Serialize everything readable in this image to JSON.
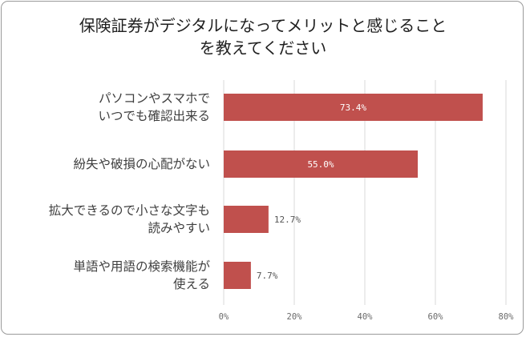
{
  "chart_data": {
    "type": "bar",
    "orientation": "horizontal",
    "title_lines": [
      "保険証券がデジタルになってメリットと感じること",
      "を教えてください"
    ],
    "categories": [
      [
        "パソコンやスマホで",
        "いつでも確認出来る"
      ],
      [
        "紛失や破損の心配がない"
      ],
      [
        "拡大できるので小さな文字も",
        "読みやすい"
      ],
      [
        "単語や用語の検索機能が",
        "使える"
      ]
    ],
    "values": [
      73.4,
      55.0,
      12.7,
      7.7
    ],
    "data_labels": [
      "73.4%",
      "55.0%",
      "12.7%",
      "7.7%"
    ],
    "x_ticks": [
      "0%",
      "20%",
      "40%",
      "60%",
      "80%"
    ],
    "xlim": [
      0,
      80
    ],
    "bar_color": "#c0504d",
    "grid": true,
    "legend": "none"
  }
}
